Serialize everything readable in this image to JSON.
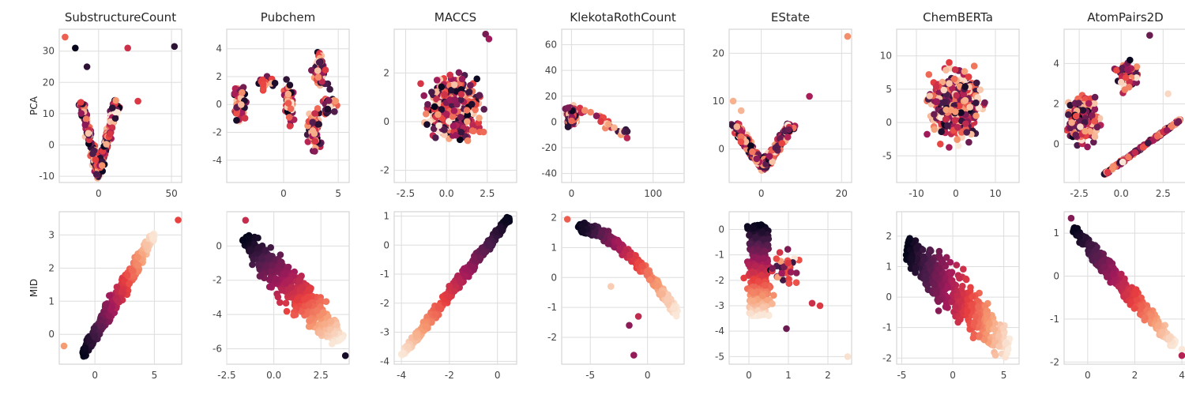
{
  "figure": {
    "columns": [
      "SubstructureCount",
      "Pubchem",
      "MACCS",
      "KlekotaRothCount",
      "EState",
      "ChemBERTa",
      "AtomPairs2D"
    ],
    "rows": [
      "PCA",
      "MID"
    ],
    "colormap": [
      "#03051a",
      "#4c1d4b",
      "#a11a5b",
      "#e83f3f",
      "#f69c73",
      "#faebdd"
    ],
    "grid_color": "#dddddd",
    "background": "#ffffff"
  },
  "chart_data": [
    {
      "type": "scatter",
      "title": "SubstructureCount",
      "ylabel": "PCA",
      "xlim": [
        -27,
        57
      ],
      "ylim": [
        -12,
        37
      ],
      "xticks": [
        "0",
        "50"
      ],
      "yticks": [
        "-10",
        "0",
        "10",
        "20",
        "30"
      ],
      "grid": true,
      "shape": "v",
      "center": [
        0,
        -9
      ],
      "spread": [
        12,
        22
      ],
      "outliers": [
        [
          -23,
          34.5
        ],
        [
          52,
          31.5
        ],
        [
          -16,
          31
        ],
        [
          20,
          31
        ],
        [
          -8,
          25
        ],
        [
          27,
          14
        ]
      ],
      "color_mode": "random",
      "seed": 11
    },
    {
      "type": "scatter",
      "title": "Pubchem",
      "xlim": [
        -5.2,
        6
      ],
      "ylim": [
        -5.6,
        5.4
      ],
      "xticks": [
        "0",
        "5"
      ],
      "yticks": [
        "-4",
        "-2",
        "0",
        "2",
        "4"
      ],
      "grid": true,
      "shape": "clusters",
      "clusters": [
        [
          -4,
          0,
          0.6,
          1.6,
          70
        ],
        [
          0.5,
          0.3,
          0.5,
          2,
          45
        ],
        [
          2.8,
          -2,
          0.6,
          1.8,
          70
        ],
        [
          3.3,
          2.5,
          0.7,
          1.5,
          55
        ],
        [
          4.2,
          0,
          0.7,
          1,
          30
        ],
        [
          -1.5,
          1.5,
          0.8,
          0.8,
          20
        ]
      ],
      "color_mode": "random",
      "seed": 12
    },
    {
      "type": "scatter",
      "title": "MACCS",
      "xlim": [
        -3.2,
        4.3
      ],
      "ylim": [
        -2.5,
        3.8
      ],
      "xticks": [
        "-2.5",
        "0.0",
        "2.5"
      ],
      "yticks": [
        "-2",
        "0",
        "2"
      ],
      "grid": true,
      "shape": "blob",
      "center": [
        0.5,
        0.5
      ],
      "spread": [
        1.6,
        1.2
      ],
      "outliers": [
        [
          2.4,
          3.6
        ],
        [
          2.6,
          3.4
        ]
      ],
      "color_mode": "random",
      "seed": 13
    },
    {
      "type": "scatter",
      "title": "KlekotaRothCount",
      "xlim": [
        -12,
        138
      ],
      "ylim": [
        -47,
        72
      ],
      "xticks": [
        "0",
        "100"
      ],
      "yticks": [
        "-40",
        "-20",
        "0",
        "20",
        "40",
        "60"
      ],
      "grid": true,
      "shape": "fan",
      "center": [
        0,
        5
      ],
      "spread": [
        8,
        10
      ],
      "tail": [
        [
          20,
          2
        ],
        [
          40,
          -5
        ],
        [
          60,
          -10
        ],
        [
          70,
          -15
        ],
        [
          95,
          -20
        ],
        [
          110,
          -12
        ],
        [
          120,
          -20
        ],
        [
          130,
          -40
        ],
        [
          35,
          20
        ],
        [
          25,
          35
        ],
        [
          70,
          67
        ]
      ],
      "color_mode": "random",
      "seed": 14
    },
    {
      "type": "scatter",
      "title": "EState",
      "xlim": [
        -8,
        22.5
      ],
      "ylim": [
        -7,
        25
      ],
      "xticks": [
        "0",
        "20"
      ],
      "yticks": [
        "0",
        "10",
        "20"
      ],
      "grid": true,
      "shape": "v",
      "center": [
        0.5,
        -4
      ],
      "spread": [
        7,
        9
      ],
      "outliers": [
        [
          21.5,
          23.5
        ],
        [
          -7,
          10
        ],
        [
          12,
          11
        ],
        [
          -5,
          8
        ]
      ],
      "color_mode": "random",
      "seed": 15
    },
    {
      "type": "scatter",
      "title": "ChemBERTa",
      "xlim": [
        -15,
        16
      ],
      "ylim": [
        -9,
        14
      ],
      "xticks": [
        "-10",
        "0",
        "10"
      ],
      "yticks": [
        "-5",
        "0",
        "5",
        "10"
      ],
      "grid": true,
      "shape": "blob",
      "center": [
        0,
        2.5
      ],
      "spread": [
        6.5,
        5
      ],
      "outliers": [],
      "color_mode": "random",
      "seed": 16
    },
    {
      "type": "scatter",
      "title": "AtomPairs2D",
      "xlim": [
        -3.4,
        3.9
      ],
      "ylim": [
        -1.9,
        5.7
      ],
      "xticks": [
        "-2.5",
        "0.0",
        "2.5"
      ],
      "yticks": [
        "0",
        "2",
        "4"
      ],
      "grid": true,
      "shape": "pairs",
      "outliers": [
        [
          1.7,
          5.4
        ],
        [
          2.8,
          2.5
        ]
      ],
      "color_mode": "random",
      "seed": 17
    },
    {
      "type": "scatter",
      "ylabel": "MID",
      "xlim": [
        -3,
        7.3
      ],
      "ylim": [
        -0.9,
        3.7
      ],
      "xticks": [
        "0",
        "5"
      ],
      "yticks": [
        "0",
        "1",
        "2",
        "3"
      ],
      "grid": true,
      "shape": "line",
      "from": [
        -1,
        -0.6
      ],
      "to": [
        5,
        3
      ],
      "width": 0.3,
      "outliers": [
        [
          -2.6,
          -0.35
        ],
        [
          7,
          3.45
        ]
      ],
      "color_mode": "grad",
      "grad_dir": 1,
      "seed": 21
    },
    {
      "type": "scatter",
      "xlim": [
        -2.5,
        4
      ],
      "ylim": [
        -6.9,
        2
      ],
      "xticks": [
        "-2.5",
        "0.0",
        "2.5"
      ],
      "yticks": [
        "-6",
        "-4",
        "-2",
        "0"
      ],
      "grid": true,
      "shape": "line",
      "from": [
        -1.5,
        0.5
      ],
      "to": [
        3.5,
        -5.5
      ],
      "width": 0.9,
      "outliers": [
        [
          3.8,
          -6.4
        ],
        [
          -1.5,
          1.5
        ]
      ],
      "color_mode": "grad",
      "grad_dir": 1,
      "seed": 22
    },
    {
      "type": "scatter",
      "xlim": [
        -4.3,
        0.8
      ],
      "ylim": [
        -4.1,
        1.15
      ],
      "xticks": [
        "-4",
        "-2",
        "0"
      ],
      "yticks": [
        "-4",
        "-3",
        "-2",
        "-1",
        "0",
        "1"
      ],
      "grid": true,
      "shape": "line",
      "from": [
        -4,
        -3.8
      ],
      "to": [
        0.5,
        0.95
      ],
      "width": 0.18,
      "outliers": [],
      "color_mode": "grad",
      "grad_dir": -1,
      "seed": 23
    },
    {
      "type": "scatter",
      "xlim": [
        -7.5,
        3.2
      ],
      "ylim": [
        -2.9,
        2.2
      ],
      "xticks": [
        "-5",
        "0"
      ],
      "yticks": [
        "-2",
        "-1",
        "0",
        "1",
        "2"
      ],
      "grid": true,
      "shape": "curve",
      "outliers": [
        [
          -7,
          1.95
        ],
        [
          -1.2,
          -2.6
        ],
        [
          -0.8,
          -1.3
        ],
        [
          -1.6,
          -1.6
        ],
        [
          -3.2,
          -0.3
        ]
      ],
      "color_mode": "grad",
      "grad_dir": -1,
      "seed": 24
    },
    {
      "type": "scatter",
      "xlim": [
        -0.5,
        2.6
      ],
      "ylim": [
        -5.3,
        0.7
      ],
      "xticks": [
        "0",
        "1",
        "2"
      ],
      "yticks": [
        "-5",
        "-4",
        "-3",
        "-2",
        "-1",
        "0"
      ],
      "grid": true,
      "shape": "estate",
      "outliers": [
        [
          2.5,
          -5
        ],
        [
          0.95,
          -3.9
        ],
        [
          1.6,
          -2.9
        ],
        [
          1.8,
          -3
        ]
      ],
      "color_mode": "vgrad",
      "seed": 25
    },
    {
      "type": "scatter",
      "xlim": [
        -5.5,
        6.5
      ],
      "ylim": [
        -2.2,
        2.8
      ],
      "xticks": [
        "-5",
        "0",
        "5"
      ],
      "yticks": [
        "-2",
        "-1",
        "0",
        "1",
        "2"
      ],
      "grid": true,
      "shape": "line",
      "from": [
        -4.5,
        1.6
      ],
      "to": [
        5.5,
        -1.6
      ],
      "width": 0.9,
      "outliers": [],
      "color_mode": "grad",
      "grad_dir": 1,
      "seed": 26
    },
    {
      "type": "scatter",
      "xlim": [
        -1,
        4.2
      ],
      "ylim": [
        -2.05,
        1.5
      ],
      "xticks": [
        "0",
        "2",
        "4"
      ],
      "yticks": [
        "-2",
        "-1",
        "0",
        "1"
      ],
      "grid": true,
      "shape": "line",
      "from": [
        -0.6,
        1.1
      ],
      "to": [
        3.7,
        -1.6
      ],
      "width": 0.22,
      "outliers": [
        [
          -0.7,
          1.35
        ],
        [
          4,
          -1.7
        ],
        [
          4,
          -1.85
        ]
      ],
      "color_mode": "grad",
      "grad_dir": 1,
      "seed": 27
    }
  ]
}
